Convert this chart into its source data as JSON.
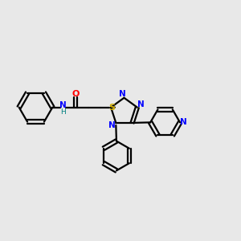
{
  "bg_color": "#e8e8e8",
  "atom_colors": {
    "C": "#000000",
    "N": "#0000ff",
    "O": "#ff0000",
    "S": "#ccaa00",
    "H": "#008080"
  },
  "figsize": [
    3.0,
    3.0
  ],
  "dpi": 100,
  "lw": 1.6
}
